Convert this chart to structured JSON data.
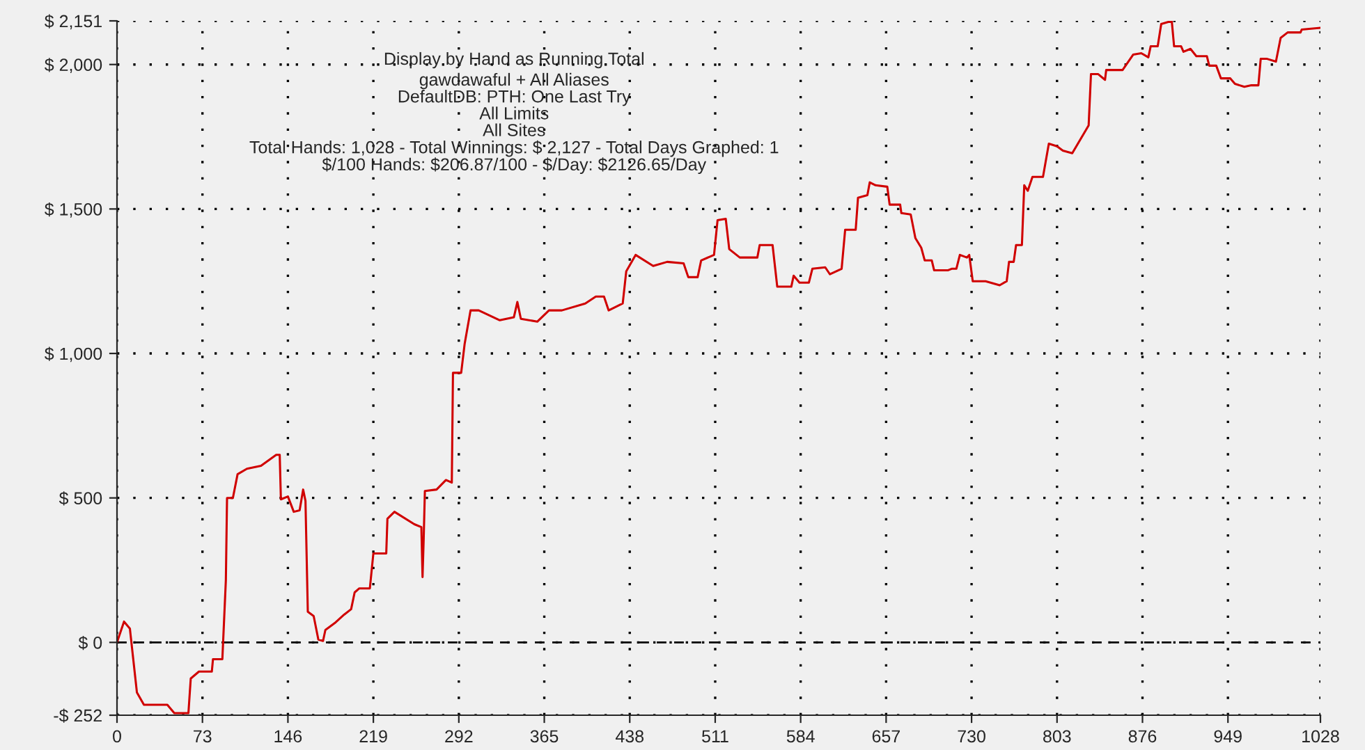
{
  "chart_data": {
    "type": "line",
    "title": "Display by Hand as Running Total",
    "subtitle": "gawdawaful + All Aliases\nDefaultDB: PTH: One Last Try\nAll Limits\nAll Sites\nTotal Hands: 1,028 - Total Winnings: $ 2,127 - Total Days Graphed: 1\n$/100 Hands: $206.87/100 - $/Day: $2126.65/Day",
    "series": [
      {
        "color": "#d00000",
        "x": [
          0,
          6,
          11,
          17,
          23,
          43,
          49,
          61,
          63,
          70,
          81,
          82,
          90,
          93,
          94,
          99,
          103,
          111,
          123,
          136,
          139,
          140,
          146,
          151,
          156,
          159,
          161,
          163,
          168,
          172,
          176,
          178,
          186,
          194,
          200,
          203,
          207,
          216,
          219,
          230,
          231,
          237,
          254,
          260,
          261,
          262,
          263,
          273,
          281,
          286,
          287,
          294,
          297,
          302,
          309,
          327,
          339,
          342,
          345,
          359,
          369,
          380,
          400,
          409,
          416,
          420,
          432,
          435,
          443,
          458,
          470,
          484,
          488,
          496,
          499,
          510,
          513,
          520,
          523,
          532,
          547,
          549,
          560,
          564,
          576,
          578,
          583,
          591,
          594,
          605,
          609,
          619,
          622,
          631,
          633,
          641,
          643,
          648,
          658,
          660,
          669,
          670,
          678,
          682,
          687,
          690,
          696,
          698,
          710,
          713,
          717,
          720,
          726,
          728,
          731,
          742,
          754,
          760,
          762,
          766,
          768,
          773,
          775,
          778,
          782,
          791,
          796,
          803,
          808,
          816,
          830,
          832,
          838,
          844,
          845,
          859,
          868,
          875,
          881,
          883,
          889,
          892,
          901,
          903,
          909,
          911,
          917,
          922,
          931,
          933,
          939,
          943,
          951,
          955,
          963,
          969,
          975,
          977,
          982,
          990,
          994,
          1000,
          1011,
          1012,
          1028
        ],
        "values": [
          0,
          72,
          48,
          -173,
          -216,
          -216,
          -245,
          -245,
          -125,
          -101,
          -101,
          -58,
          -58,
          216,
          500,
          500,
          582,
          601,
          611,
          649,
          649,
          495,
          505,
          452,
          457,
          529,
          490,
          106,
          91,
          10,
          5,
          43,
          67,
          96,
          115,
          173,
          187,
          187,
          308,
          308,
          428,
          452,
          409,
          399,
          226,
          361,
          524,
          529,
          562,
          553,
          933,
          933,
          1034,
          1149,
          1149,
          1115,
          1125,
          1178,
          1120,
          1110,
          1149,
          1149,
          1173,
          1197,
          1197,
          1149,
          1173,
          1284,
          1341,
          1303,
          1317,
          1312,
          1264,
          1264,
          1322,
          1341,
          1461,
          1466,
          1361,
          1332,
          1332,
          1375,
          1375,
          1231,
          1231,
          1269,
          1245,
          1245,
          1293,
          1298,
          1274,
          1293,
          1428,
          1428,
          1539,
          1548,
          1592,
          1582,
          1577,
          1515,
          1515,
          1486,
          1481,
          1399,
          1366,
          1322,
          1322,
          1288,
          1288,
          1293,
          1293,
          1341,
          1332,
          1341,
          1250,
          1250,
          1236,
          1250,
          1317,
          1317,
          1375,
          1375,
          1582,
          1563,
          1611,
          1611,
          1726,
          1717,
          1702,
          1693,
          1789,
          1967,
          1967,
          1947,
          1981,
          1981,
          2034,
          2039,
          2025,
          2063,
          2063,
          2140,
          2151,
          2063,
          2063,
          2044,
          2054,
          2029,
          2029,
          1996,
          1996,
          1952,
          1952,
          1933,
          1923,
          1928,
          1928,
          2020,
          2020,
          2010,
          2092,
          2111,
          2111,
          2121,
          2127
        ]
      }
    ],
    "xlim": [
      0,
      1028
    ],
    "xticks": [
      0,
      73,
      146,
      219,
      292,
      365,
      438,
      511,
      584,
      657,
      730,
      803,
      876,
      949,
      1028
    ],
    "ylim": [
      -252,
      2151
    ],
    "yticks": [
      {
        "value": -252,
        "label": "-$ 252"
      },
      {
        "value": 0,
        "label": "$ 0"
      },
      {
        "value": 500,
        "label": "$ 500"
      },
      {
        "value": 1000,
        "label": "$ 1,000"
      },
      {
        "value": 1500,
        "label": "$ 1,500"
      },
      {
        "value": 2000,
        "label": "$ 2,000"
      },
      {
        "value": 2151,
        "label": "$ 2,151"
      }
    ],
    "ref_lines": [
      {
        "axis": "y",
        "value": 0,
        "color": "#000000",
        "line_style": "dashed"
      }
    ],
    "grid": true,
    "line_style": "solid",
    "marker": "none",
    "legend": false
  }
}
